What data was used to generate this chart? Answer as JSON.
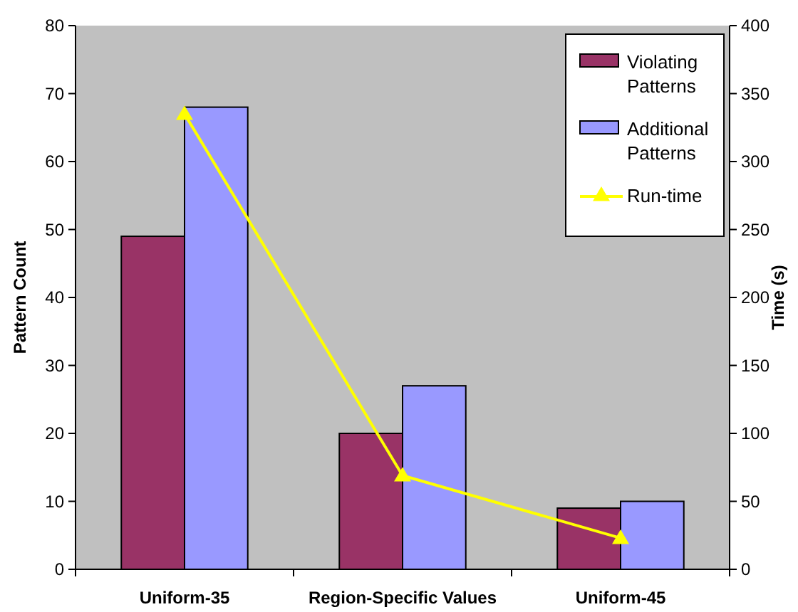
{
  "chart_data": {
    "type": "bar",
    "categories": [
      "Uniform-35",
      "Region-Specific Values",
      "Uniform-45"
    ],
    "ylabel": "Pattern Count",
    "y2label": "Time (s)",
    "ylim": [
      0,
      80
    ],
    "yticks": [
      0,
      10,
      20,
      30,
      40,
      50,
      60,
      70,
      80
    ],
    "y2lim": [
      0,
      400
    ],
    "y2ticks": [
      0,
      50,
      100,
      150,
      200,
      250,
      300,
      350,
      400
    ],
    "series": [
      {
        "name": "Violating Patterns",
        "color": "#993366",
        "values": [
          49,
          20,
          9
        ]
      },
      {
        "name": "Additional Patterns",
        "color": "#9999ff",
        "values": [
          68,
          27,
          10
        ]
      },
      {
        "name": "Run-time",
        "type": "line",
        "axis": "y2",
        "color": "#ffff00",
        "marker": "triangle",
        "values": [
          335,
          69,
          23
        ]
      }
    ],
    "grid": false,
    "legend": "top right"
  }
}
